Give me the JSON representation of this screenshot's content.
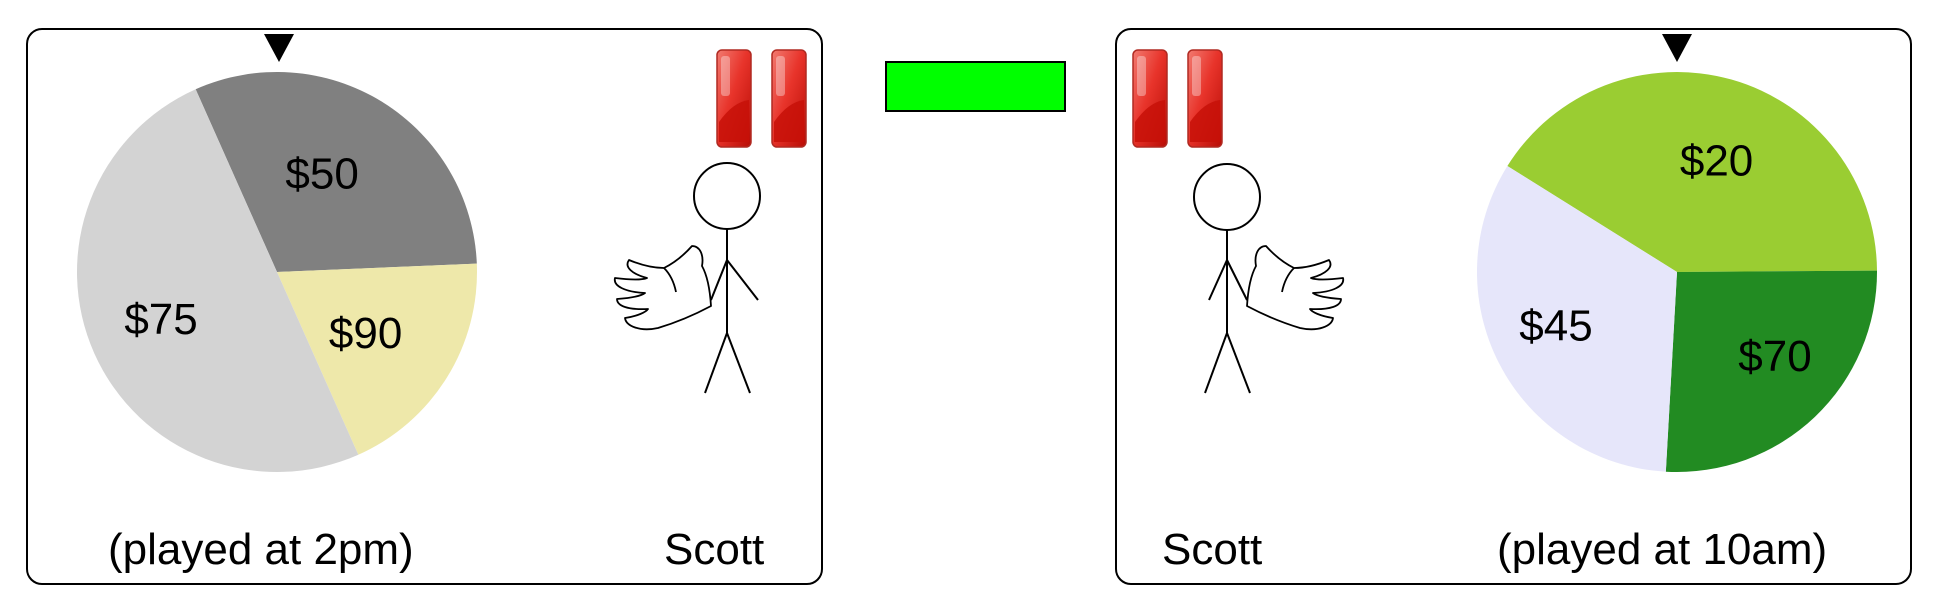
{
  "colors": {
    "middle_bar": "#00FF00",
    "ticket": "#E01A12",
    "pointer": "#000000"
  },
  "left_panel": {
    "wheel": {
      "pointer_icon": "triangle-down-icon",
      "slices": [
        {
          "label": "$50",
          "color": "#808080",
          "share": 0.31
        },
        {
          "label": "$90",
          "color": "#EEE8AA",
          "share": 0.19
        },
        {
          "label": "$75",
          "color": "#D3D3D3",
          "share": 0.5
        }
      ]
    },
    "tickets": 2,
    "person": {
      "icon": "stick-figure-icon",
      "hand_icon": "open-hand-icon"
    },
    "time_caption": "(played at 2pm)",
    "name": "Scott"
  },
  "right_panel": {
    "wheel": {
      "pointer_icon": "triangle-down-icon",
      "slices": [
        {
          "label": "$20",
          "color": "#9ACD32",
          "share": 0.41
        },
        {
          "label": "$70",
          "color": "#228B22",
          "share": 0.26
        },
        {
          "label": "$45",
          "color": "#E6E6FA",
          "share": 0.33
        }
      ]
    },
    "tickets": 2,
    "person": {
      "icon": "stick-figure-icon",
      "hand_icon": "open-hand-icon"
    },
    "name": "Scott",
    "time_caption": "(played at 10am)"
  }
}
